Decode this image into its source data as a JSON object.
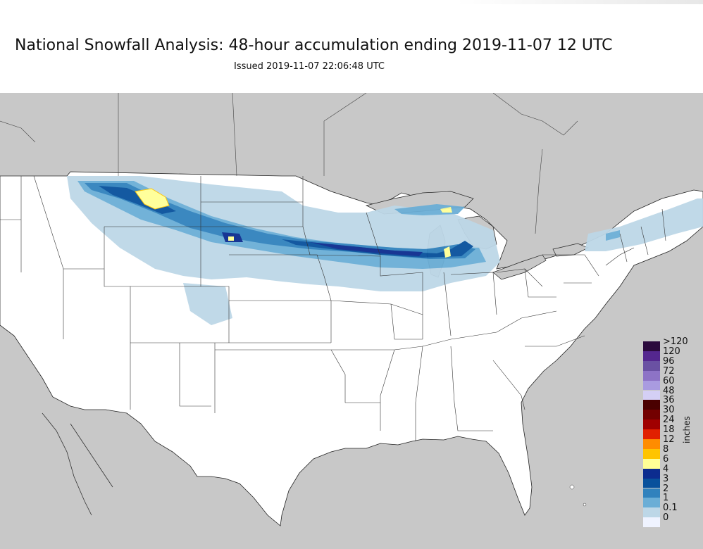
{
  "title": "National Snowfall Analysis: 48-hour accumulation ending 2019-11-07 12 UTC",
  "subtitle": "Issued 2019-11-07 22:06:48 UTC",
  "legend": {
    "units": "inches",
    "bins": [
      {
        "label": ">120",
        "color": "#2b0a3d"
      },
      {
        "label": "120",
        "color": "#54278f"
      },
      {
        "label": "96",
        "color": "#6a51a3"
      },
      {
        "label": "72",
        "color": "#8d73c6"
      },
      {
        "label": "60",
        "color": "#a99be0"
      },
      {
        "label": "48",
        "color": "#d4cff5"
      },
      {
        "label": "36",
        "color": "#4a0000"
      },
      {
        "label": "30",
        "color": "#730000"
      },
      {
        "label": "24",
        "color": "#a00000"
      },
      {
        "label": "18",
        "color": "#e12000"
      },
      {
        "label": "12",
        "color": "#ff8c00"
      },
      {
        "label": "8",
        "color": "#ffc400"
      },
      {
        "label": "6",
        "color": "#ffff96"
      },
      {
        "label": "4",
        "color": "#0c2c8f"
      },
      {
        "label": "3",
        "color": "#08519c"
      },
      {
        "label": "2",
        "color": "#3182bd"
      },
      {
        "label": "1",
        "color": "#6baed6"
      },
      {
        "label": "0.1",
        "color": "#bdd7e7"
      },
      {
        "label": "0",
        "color": "#eff3ff"
      }
    ]
  }
}
